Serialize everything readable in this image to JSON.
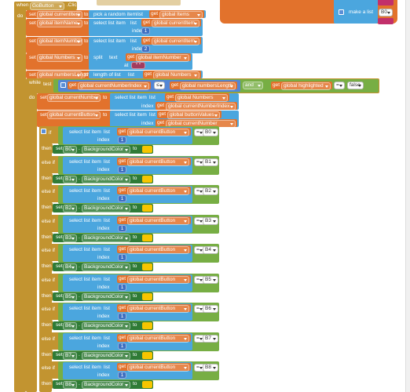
{
  "event": {
    "when": "when",
    "component": "GoButton",
    "event": ".Click",
    "do": "do"
  },
  "toolbox_fragment": {
    "make": "make a list",
    "item": "B0"
  },
  "assignments": [
    {
      "set": "set",
      "variable": "global currentItem",
      "to": "to",
      "block": "pick a random item",
      "list": "list",
      "get": "get",
      "source": "global Items"
    },
    {
      "set": "set",
      "variable": "global itemName",
      "to": "to",
      "block": "select list item",
      "list": "list",
      "get": "get",
      "source": "global currentItem",
      "index_label": "index",
      "index": 1
    },
    {
      "set": "set",
      "variable": "global itemNumber",
      "to": "to",
      "block": "select list item",
      "list": "list",
      "get": "get",
      "source": "global currentItem",
      "index_label": "index",
      "index": 2
    },
    {
      "set": "set",
      "variable": "global Numbers",
      "to": "to",
      "block": "split",
      "list": "text",
      "get": "get",
      "source": "global itemNumber",
      "index_label": "at",
      "index": "\" \""
    },
    {
      "set": "set",
      "variable": "global numbersLength",
      "to": "to",
      "block": "length of list",
      "list": "list",
      "get": "get",
      "source": "global Numbers"
    }
  ],
  "while": {
    "label": "while",
    "test": "test",
    "do": "do",
    "left_get": "get",
    "left": "global currentNumberIndex",
    "operator": "≤",
    "right_get": "get",
    "right": "global numbersLength",
    "and": "and",
    "left2_get": "get",
    "left2": "global highlighted",
    "operator2": "=",
    "value2": "false"
  },
  "loop_body": [
    {
      "set": "set",
      "variable": "global currentNumber",
      "to": "to",
      "block": "select list item",
      "list": "list",
      "get": "get",
      "source": "global Numbers",
      "index_label": "index",
      "index_get": "get",
      "index_source": "global currentNumberIndex"
    },
    {
      "set": "set",
      "variable": "global currentButton",
      "to": "to",
      "block": "select list item",
      "list": "list",
      "get": "get",
      "source": "global buttonValues",
      "index_label": "index",
      "index_get": "get",
      "index_source": "global currentNumber"
    }
  ],
  "conditions": [
    {
      "keyword": "if",
      "block": "select list item",
      "list": "list",
      "get": "get",
      "source": "global currentButton",
      "index_label": "index",
      "index": 1,
      "operator": "=",
      "button": "B0",
      "then": "then",
      "set": "set",
      "component": "B0",
      "dot": ".",
      "property": "BackgroundColor",
      "to": "to"
    },
    {
      "keyword": "else if",
      "block": "select list item",
      "list": "list",
      "get": "get",
      "source": "global currentButton",
      "index_label": "index",
      "index": 1,
      "operator": "=",
      "button": "B1",
      "then": "then",
      "set": "set",
      "component": "B1",
      "dot": ".",
      "property": "BackgroundColor",
      "to": "to"
    },
    {
      "keyword": "else if",
      "block": "select list item",
      "list": "list",
      "get": "get",
      "source": "global currentButton",
      "index_label": "index",
      "index": 1,
      "operator": "=",
      "button": "B2",
      "then": "then",
      "set": "set",
      "component": "B2",
      "dot": ".",
      "property": "BackgroundColor",
      "to": "to"
    },
    {
      "keyword": "else if",
      "block": "select list item",
      "list": "list",
      "get": "get",
      "source": "global currentButton",
      "index_label": "index",
      "index": 1,
      "operator": "=",
      "button": "B3",
      "then": "then",
      "set": "set",
      "component": "B3",
      "dot": ".",
      "property": "BackgroundColor",
      "to": "to"
    },
    {
      "keyword": "else if",
      "block": "select list item",
      "list": "list",
      "get": "get",
      "source": "global currentButton",
      "index_label": "index",
      "index": 1,
      "operator": "=",
      "button": "B4",
      "then": "then",
      "set": "set",
      "component": "B4",
      "dot": ".",
      "property": "BackgroundColor",
      "to": "to"
    },
    {
      "keyword": "else if",
      "block": "select list item",
      "list": "list",
      "get": "get",
      "source": "global currentButton",
      "index_label": "index",
      "index": 1,
      "operator": "=",
      "button": "B5",
      "then": "then",
      "set": "set",
      "component": "B5",
      "dot": ".",
      "property": "BackgroundColor",
      "to": "to"
    },
    {
      "keyword": "else if",
      "block": "select list item",
      "list": "list",
      "get": "get",
      "source": "global currentButton",
      "index_label": "index",
      "index": 1,
      "operator": "=",
      "button": "B6",
      "then": "then",
      "set": "set",
      "component": "B6",
      "dot": ".",
      "property": "BackgroundColor",
      "to": "to"
    },
    {
      "keyword": "else if",
      "block": "select list item",
      "list": "list",
      "get": "get",
      "source": "global currentButton",
      "index_label": "index",
      "index": 1,
      "operator": "=",
      "button": "B7",
      "then": "then",
      "set": "set",
      "component": "B7",
      "dot": ".",
      "property": "BackgroundColor",
      "to": "to"
    },
    {
      "keyword": "else if",
      "block": "select list item",
      "list": "list",
      "get": "get",
      "source": "global currentButton",
      "index_label": "index",
      "index": 1,
      "operator": "=",
      "button": "B8",
      "then": "then",
      "set": "set",
      "component": "B8",
      "dot": ".",
      "property": "BackgroundColor",
      "to": "to"
    }
  ]
}
